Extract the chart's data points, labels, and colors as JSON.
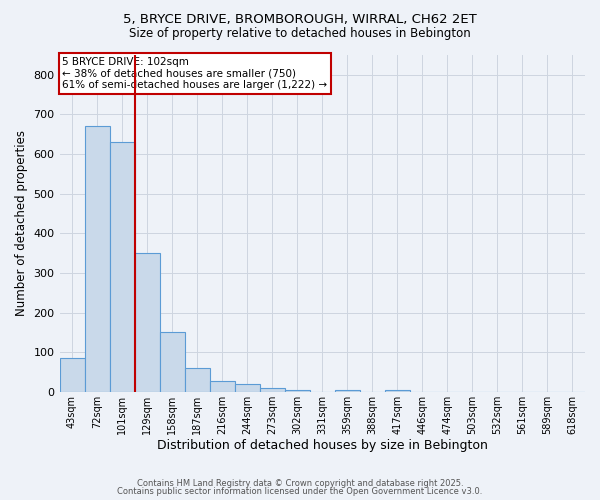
{
  "title_line1": "5, BRYCE DRIVE, BROMBOROUGH, WIRRAL, CH62 2ET",
  "title_line2": "Size of property relative to detached houses in Bebington",
  "xlabel": "Distribution of detached houses by size in Bebington",
  "ylabel": "Number of detached properties",
  "bins": [
    "43sqm",
    "72sqm",
    "101sqm",
    "129sqm",
    "158sqm",
    "187sqm",
    "216sqm",
    "244sqm",
    "273sqm",
    "302sqm",
    "331sqm",
    "359sqm",
    "388sqm",
    "417sqm",
    "446sqm",
    "474sqm",
    "503sqm",
    "532sqm",
    "561sqm",
    "589sqm",
    "618sqm"
  ],
  "values": [
    85,
    670,
    630,
    350,
    150,
    60,
    27,
    20,
    10,
    5,
    0,
    5,
    0,
    5,
    0,
    0,
    0,
    0,
    0,
    0,
    0
  ],
  "bar_color": "#c9d9ea",
  "bar_edge_color": "#5b9bd5",
  "highlight_bin_index": 2,
  "red_line_color": "#c00000",
  "ylim": [
    0,
    850
  ],
  "yticks": [
    0,
    100,
    200,
    300,
    400,
    500,
    600,
    700,
    800
  ],
  "grid_color": "#cdd5e0",
  "background_color": "#eef2f8",
  "annotation_text": "5 BRYCE DRIVE: 102sqm\n← 38% of detached houses are smaller (750)\n61% of semi-detached houses are larger (1,222) →",
  "annotation_box_color": "#ffffff",
  "annotation_box_edge": "#c00000",
  "footer_line1": "Contains HM Land Registry data © Crown copyright and database right 2025.",
  "footer_line2": "Contains public sector information licensed under the Open Government Licence v3.0."
}
